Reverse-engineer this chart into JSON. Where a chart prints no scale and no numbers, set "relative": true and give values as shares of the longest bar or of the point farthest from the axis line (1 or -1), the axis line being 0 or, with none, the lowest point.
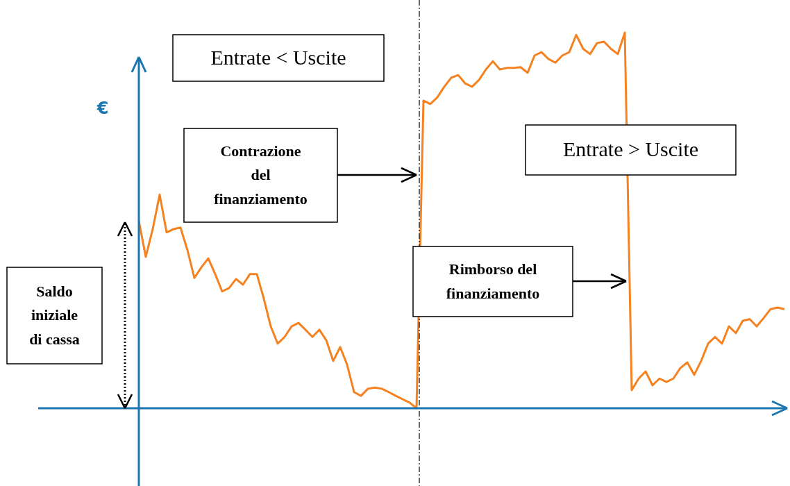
{
  "chart_data": {
    "type": "line",
    "relative": true,
    "ylabel": "€",
    "categories": [
      null,
      null,
      null,
      null,
      null,
      null,
      null,
      null,
      null,
      null,
      null,
      null,
      null,
      null,
      null,
      null,
      null,
      null,
      null,
      null,
      null,
      null,
      null,
      null,
      null,
      null,
      null,
      null,
      null,
      null,
      null,
      null,
      null,
      null,
      null,
      null,
      null,
      null,
      null,
      null,
      null,
      null,
      null,
      null,
      null,
      null,
      null,
      null,
      null,
      null,
      null,
      null,
      null,
      null,
      null,
      null,
      null,
      null,
      null,
      null,
      null,
      null,
      null,
      null,
      null,
      null,
      null,
      null,
      null,
      null,
      null,
      null,
      null,
      null,
      null,
      null,
      null,
      null,
      null,
      null,
      null,
      null,
      null,
      null,
      null,
      null,
      null,
      null,
      null,
      null,
      null,
      null,
      null,
      null,
      null,
      null,
      null,
      null,
      null,
      null,
      null,
      null,
      null,
      null,
      null,
      null,
      null,
      null
    ],
    "series": [
      {
        "color": "#f58220",
        "values": [
          null,
          null,
          null,
          null,
          null,
          null,
          null,
          null,
          null,
          null,
          null,
          null,
          null,
          null,
          0.499,
          0.403,
          0.477,
          0.569,
          0.468,
          0.477,
          0.481,
          0.421,
          0.347,
          0.375,
          0.399,
          0.357,
          0.311,
          0.32,
          0.344,
          0.329,
          0.357,
          0.357,
          0.292,
          0.218,
          0.172,
          0.19,
          0.218,
          0.227,
          0.209,
          0.19,
          0.209,
          0.181,
          0.126,
          0.163,
          0.116,
          0.043,
          0.033,
          0.052,
          0.055,
          0.052,
          0.043,
          0.033,
          0.024,
          0.015,
          0,
          0.819,
          0.81,
          0.828,
          0.856,
          0.88,
          0.887,
          0.865,
          0.856,
          0.874,
          0.902,
          0.924,
          0.902,
          0.906,
          0.906,
          0.908,
          0.893,
          0.939,
          0.948,
          0.93,
          0.92,
          0.939,
          0.948,
          0.994,
          0.957,
          0.943,
          0.972,
          0.976,
          0.957,
          0.943,
          1,
          0.048,
          0.079,
          0.098,
          0.061,
          0.079,
          0.07,
          0.079,
          0.107,
          0.122,
          0.089,
          0.126,
          0.172,
          0.19,
          0.172,
          0.218,
          0.2,
          0.233,
          0.237,
          0.218,
          0.24,
          0.264,
          0.268,
          0.264
        ]
      }
    ],
    "annotations": [
      "Entrate < Uscite",
      "Contrazione del finanziamento",
      "Entrate > Uscite",
      "Rimborso del finanziamento",
      "Saldo iniziale di cassa"
    ]
  }
}
